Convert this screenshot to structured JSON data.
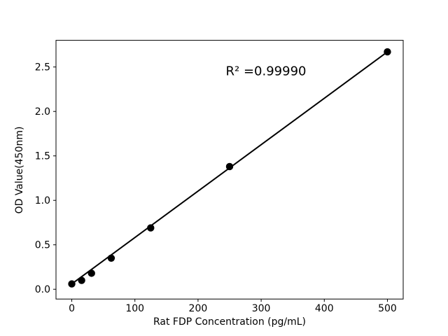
{
  "figure": {
    "background": "#ffffff"
  },
  "chart_data": {
    "type": "scatter",
    "title": "",
    "xlabel": "Rat FDP Concentration (pg/mL)",
    "ylabel": "OD Value(450nm)",
    "annotation": "R² =0.99990",
    "r_squared": 0.9999,
    "x": [
      0,
      15.6,
      31.25,
      62.5,
      125,
      250,
      500
    ],
    "y": [
      0.06,
      0.1,
      0.18,
      0.35,
      0.69,
      1.38,
      2.67
    ],
    "trendline": {
      "from": [
        0,
        0.06
      ],
      "to": [
        500,
        2.67
      ]
    },
    "xticks": [
      0,
      100,
      200,
      300,
      400,
      500
    ],
    "yticks": [
      0.0,
      0.5,
      1.0,
      1.5,
      2.0,
      2.5
    ],
    "xlim": [
      -25,
      525
    ],
    "ylim": [
      -0.11,
      2.8
    ],
    "grid": false,
    "legend_position": "none",
    "marker_color": "#000000",
    "line_color": "#000000",
    "axis_color": "#000000",
    "background": "#ffffff"
  }
}
